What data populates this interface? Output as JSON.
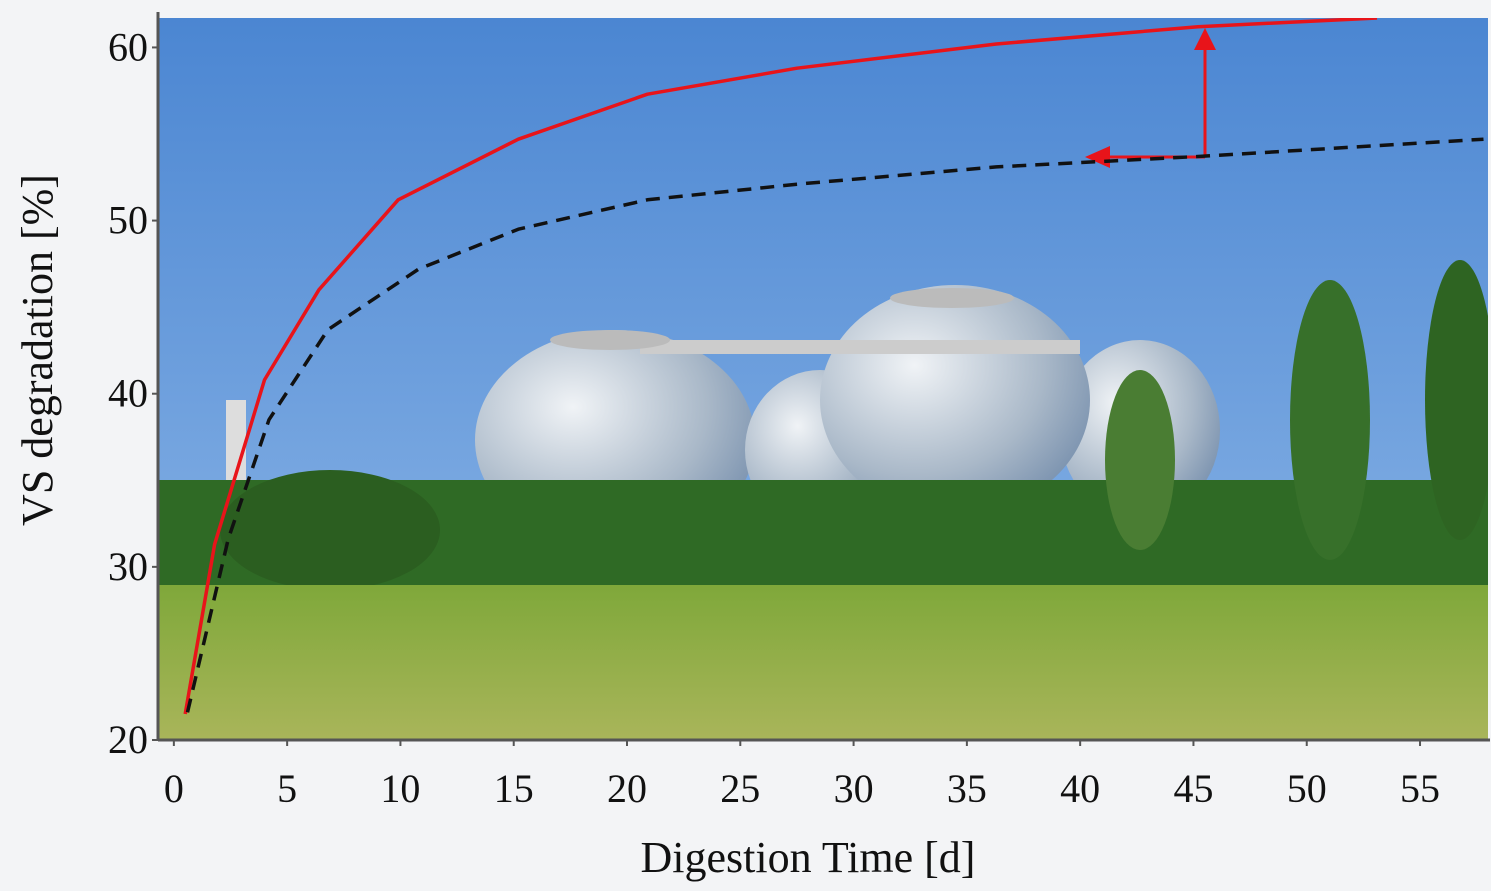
{
  "chart_data": {
    "type": "line",
    "x_label": "Digestion Time [d]",
    "y_label": "VS degradation [%]",
    "xlim": [
      -0.7,
      58
    ],
    "ylim": [
      20,
      61.7
    ],
    "xticks": [
      0,
      5,
      10,
      15,
      20,
      25,
      30,
      35,
      40,
      45,
      50,
      55
    ],
    "yticks": [
      20,
      30,
      40,
      50,
      60
    ],
    "series": [
      {
        "color": "#e8141a",
        "dash": false,
        "x": [
          0.5,
          1.8,
          4,
          6.4,
          9.9,
          15.2,
          20.9,
          27.5,
          36.3,
          45.2,
          53.1
        ],
        "values": [
          21.5,
          31.3,
          40.8,
          46,
          51.2,
          54.7,
          57.3,
          58.8,
          60.2,
          61.2,
          61.7
        ]
      },
      {
        "color": "#111111",
        "dash": true,
        "x": [
          0.6,
          2.4,
          4.2,
          6.8,
          10.8,
          15.2,
          20.9,
          27.5,
          36.3,
          45.2,
          57.8
        ],
        "values": [
          21.6,
          31.6,
          38.5,
          43.7,
          47.2,
          49.5,
          51.2,
          52.1,
          53.1,
          53.7,
          54.7
        ]
      }
    ]
  }
}
